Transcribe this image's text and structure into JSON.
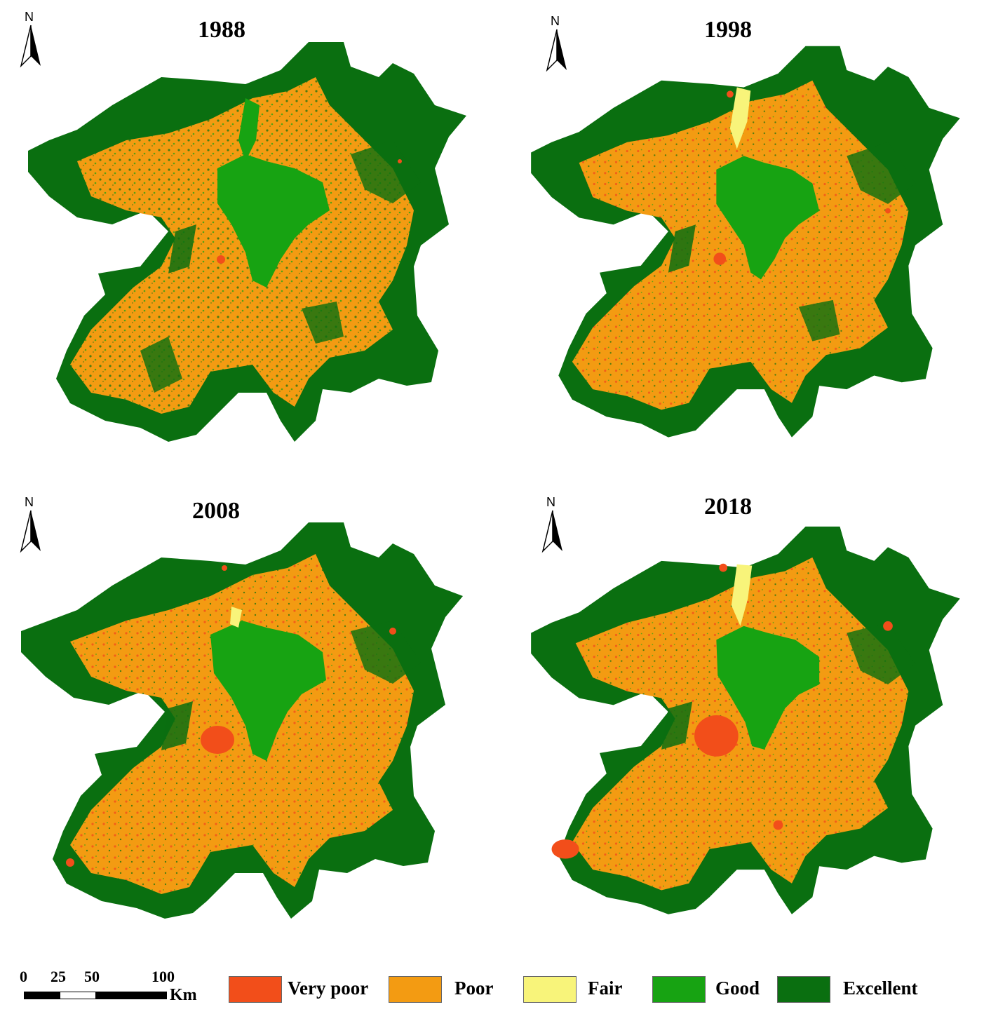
{
  "colors": {
    "very_poor": "#f24e1a",
    "poor": "#f39b12",
    "fair": "#f8f47a",
    "good": "#17a312",
    "excellent": "#0a6f10"
  },
  "panels": [
    {
      "year": "1988",
      "north": "N"
    },
    {
      "year": "1998",
      "north": "N"
    },
    {
      "year": "2008",
      "north": "N"
    },
    {
      "year": "2018",
      "north": "N"
    }
  ],
  "scale_bar": {
    "ticks": [
      "0",
      "25",
      "50",
      "100"
    ],
    "unit": "Km"
  },
  "legend": [
    {
      "label": "Very poor",
      "color": "#f24e1a"
    },
    {
      "label": "Poor",
      "color": "#f39b12"
    },
    {
      "label": "Fair",
      "color": "#f8f47a"
    },
    {
      "label": "Good",
      "color": "#17a312"
    },
    {
      "label": "Excellent",
      "color": "#0a6f10"
    }
  ]
}
